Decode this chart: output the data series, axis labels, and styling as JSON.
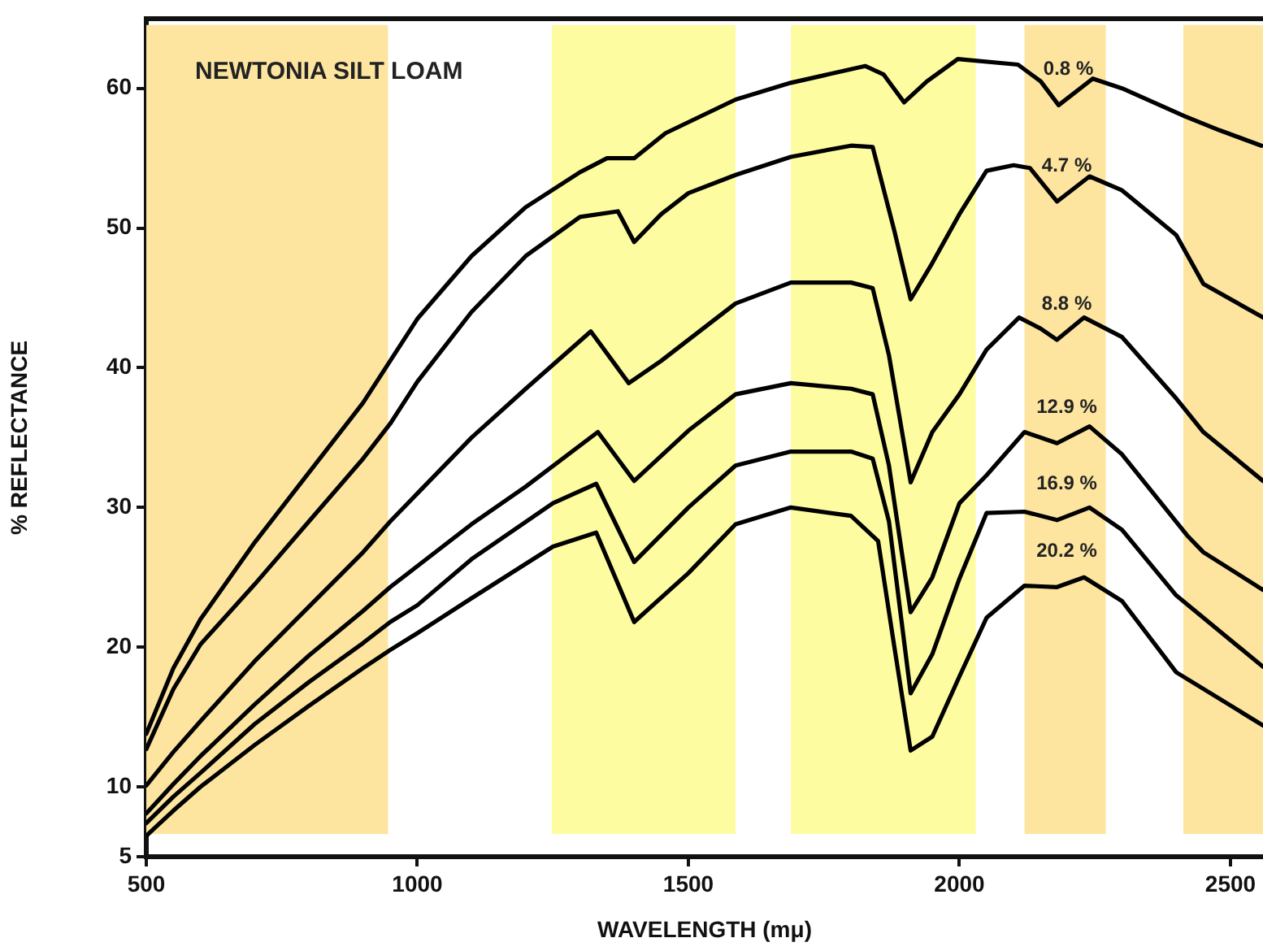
{
  "chart_data": {
    "type": "line",
    "title": "NEWTONIA SILT LOAM",
    "xlabel": "WAVELENGTH (mμ)",
    "ylabel": "% REFLECTANCE",
    "xlim": [
      500,
      2560
    ],
    "xticks": [
      500,
      1000,
      1500,
      2000,
      2500
    ],
    "ylim": [
      5,
      65
    ],
    "yticks": [
      5,
      10,
      20,
      30,
      40,
      50,
      60
    ],
    "marker": "none",
    "line_style": "solid",
    "series": [
      {
        "name": "0.8 %",
        "color": "#000000",
        "x": [
          500,
          550,
          600,
          700,
          800,
          900,
          950,
          1000,
          1100,
          1200,
          1300,
          1350,
          1400,
          1458,
          1587,
          1689,
          1826,
          1860,
          1898,
          1940,
          1997,
          2108,
          2150,
          2183,
          2246,
          2300,
          2416,
          2480,
          2557
        ],
        "values": [
          13.8,
          18.5,
          22,
          27.5,
          32.5,
          37.5,
          40.5,
          43.5,
          48,
          51.5,
          54,
          55,
          55,
          56.8,
          59.2,
          60.4,
          61.6,
          61,
          59,
          60.5,
          62.1,
          61.7,
          60.5,
          58.8,
          60.7,
          60,
          58,
          57,
          55.9
        ]
      },
      {
        "name": "4.7 %",
        "color": "#000000",
        "x": [
          500,
          550,
          600,
          700,
          800,
          900,
          950,
          1000,
          1100,
          1200,
          1300,
          1370,
          1400,
          1450,
          1500,
          1587,
          1689,
          1800,
          1840,
          1880,
          1910,
          1950,
          2000,
          2050,
          2100,
          2130,
          2180,
          2240,
          2300,
          2400,
          2450,
          2560
        ],
        "values": [
          12.7,
          17,
          20.2,
          24.5,
          29,
          33.5,
          36,
          39,
          44,
          48,
          50.8,
          51.2,
          49,
          51,
          52.5,
          53.8,
          55.1,
          55.9,
          55.8,
          49.8,
          44.9,
          47.5,
          51,
          54.1,
          54.5,
          54.3,
          51.9,
          53.7,
          52.7,
          49.5,
          46,
          43.6
        ]
      },
      {
        "name": "8.8 %",
        "color": "#000000",
        "x": [
          500,
          550,
          600,
          700,
          800,
          900,
          950,
          1000,
          1100,
          1200,
          1320,
          1390,
          1450,
          1500,
          1587,
          1689,
          1800,
          1840,
          1870,
          1910,
          1950,
          2000,
          2050,
          2110,
          2150,
          2180,
          2230,
          2300,
          2400,
          2450,
          2560
        ],
        "values": [
          10.1,
          12.5,
          14.7,
          19,
          22.9,
          26.8,
          29,
          31,
          35,
          38.5,
          42.6,
          38.9,
          40.5,
          42,
          44.6,
          46.1,
          46.1,
          45.7,
          40.9,
          31.8,
          35.4,
          38.1,
          41.3,
          43.6,
          42.8,
          42,
          43.6,
          42.2,
          37.8,
          35.4,
          31.9
        ]
      },
      {
        "name": "12.9 %",
        "color": "#000000",
        "x": [
          500,
          550,
          600,
          700,
          800,
          900,
          950,
          1000,
          1100,
          1200,
          1333,
          1400,
          1500,
          1587,
          1689,
          1800,
          1840,
          1870,
          1910,
          1950,
          2000,
          2050,
          2120,
          2180,
          2240,
          2300,
          2420,
          2450,
          2560
        ],
        "values": [
          8.1,
          10.2,
          12.2,
          15.9,
          19.4,
          22.6,
          24.3,
          25.8,
          28.8,
          31.5,
          35.4,
          31.9,
          35.5,
          38.1,
          38.9,
          38.5,
          38.1,
          33,
          22.5,
          25,
          30.3,
          32.3,
          35.4,
          34.6,
          35.8,
          33.8,
          28,
          26.8,
          24.1
        ]
      },
      {
        "name": "16.9 %",
        "color": "#000000",
        "x": [
          500,
          550,
          600,
          700,
          800,
          900,
          950,
          1000,
          1100,
          1250,
          1330,
          1400,
          1500,
          1587,
          1689,
          1800,
          1840,
          1870,
          1910,
          1950,
          2000,
          2050,
          2120,
          2180,
          2240,
          2300,
          2400,
          2560
        ],
        "values": [
          7.4,
          9.3,
          11,
          14.5,
          17.5,
          20.3,
          21.8,
          23,
          26.3,
          30.3,
          31.7,
          26.1,
          30,
          33,
          34,
          34,
          33.5,
          29,
          16.7,
          19.5,
          24.9,
          29.6,
          29.7,
          29.1,
          30,
          28.4,
          23.7,
          18.6
        ]
      },
      {
        "name": "20.2 %",
        "color": "#000000",
        "x": [
          500,
          550,
          600,
          700,
          800,
          900,
          950,
          1000,
          1100,
          1250,
          1330,
          1400,
          1500,
          1587,
          1689,
          1800,
          1850,
          1880,
          1910,
          1950,
          2000,
          2050,
          2120,
          2180,
          2230,
          2300,
          2400,
          2560
        ],
        "values": [
          6.5,
          8.3,
          10,
          13,
          15.8,
          18.5,
          19.8,
          21,
          23.5,
          27.2,
          28.2,
          21.8,
          25.3,
          28.8,
          30,
          29.4,
          27.6,
          20,
          12.6,
          13.6,
          17.9,
          22.1,
          24.4,
          24.3,
          25,
          23.3,
          18.2,
          14.4
        ]
      }
    ],
    "bands": [
      {
        "axis": "x",
        "from": 500,
        "to": 946,
        "color": "#fde5a0"
      },
      {
        "axis": "x",
        "from": 1248,
        "to": 1587,
        "color": "#fefca0"
      },
      {
        "axis": "x",
        "from": 1689,
        "to": 2030,
        "color": "#fefca0"
      },
      {
        "axis": "x",
        "from": 2120,
        "to": 2270,
        "color": "#fde5a0"
      },
      {
        "axis": "x",
        "from": 2413,
        "to": 2560,
        "color": "#fde5a0"
      }
    ]
  }
}
